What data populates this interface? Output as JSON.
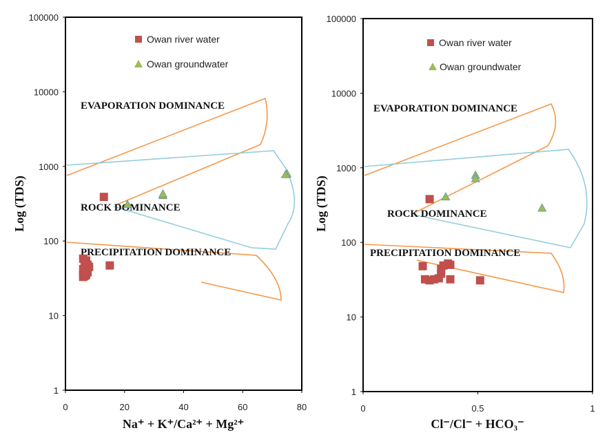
{
  "chart_data": [
    {
      "type": "scatter",
      "title": "",
      "xlabel": "Na⁺ + K⁺/Ca²⁺ + Mg²⁺",
      "ylabel": "Log (TDS)",
      "xlim": [
        0,
        80
      ],
      "ylim": [
        1,
        100000
      ],
      "yscale": "log",
      "x_ticks": [
        "0",
        "20",
        "40",
        "60",
        "80"
      ],
      "y_ticks": [
        "1",
        "10",
        "100",
        "1000",
        "10000",
        "100000"
      ],
      "grid": false,
      "legend_position": "top-right",
      "zones": [
        "EVAPORATION DOMINANCE",
        "ROCK DOMINANCE",
        "PRECIPITATION DOMINANCE"
      ],
      "series": [
        {
          "name": "Owan river water",
          "marker": "square",
          "color": "#c0504d",
          "points": [
            [
              13,
              390
            ],
            [
              6,
              58
            ],
            [
              7,
              55
            ],
            [
              6.5,
              50
            ],
            [
              7.5,
              48
            ],
            [
              8,
              45
            ],
            [
              6,
              42
            ],
            [
              7,
              40
            ],
            [
              7.5,
              38
            ],
            [
              6,
              36
            ],
            [
              7,
              35
            ],
            [
              6.5,
              34
            ],
            [
              6,
              33
            ],
            [
              15,
              47
            ]
          ]
        },
        {
          "name": "Owan groundwater",
          "marker": "triangle",
          "color": "#9bbb59",
          "points": [
            [
              21,
              310
            ],
            [
              33,
              410
            ],
            [
              33,
              430
            ],
            [
              75,
              800
            ],
            [
              74.5,
              780
            ]
          ]
        }
      ],
      "boomerang_colors": {
        "outer": "#f79646",
        "inner": "#93cddd"
      }
    },
    {
      "type": "scatter",
      "title": "",
      "xlabel": "Cl⁻/Cl⁻ + HCO₃⁻",
      "ylabel": "Log (TDS)",
      "xlim": [
        0,
        1
      ],
      "ylim": [
        1,
        100000
      ],
      "yscale": "log",
      "x_ticks": [
        "0",
        "0.5",
        "1"
      ],
      "y_ticks": [
        "1",
        "10",
        "100",
        "1000",
        "10000",
        "100000"
      ],
      "grid": false,
      "legend_position": "top-right",
      "zones": [
        "EVAPORATION DOMINANCE",
        "ROCK DOMINANCE",
        "PRECIPITATION DOMINANCE"
      ],
      "series": [
        {
          "name": "Owan river water",
          "marker": "square",
          "color": "#c0504d",
          "points": [
            [
              0.29,
              380
            ],
            [
              0.26,
              48
            ],
            [
              0.27,
              32
            ],
            [
              0.29,
              31
            ],
            [
              0.31,
              32
            ],
            [
              0.33,
              33
            ],
            [
              0.34,
              38
            ],
            [
              0.34,
              44
            ],
            [
              0.35,
              49
            ],
            [
              0.37,
              52
            ],
            [
              0.38,
              50
            ],
            [
              0.38,
              32
            ],
            [
              0.51,
              31
            ]
          ]
        },
        {
          "name": "Owan groundwater",
          "marker": "triangle",
          "color": "#9bbb59",
          "points": [
            [
              0.36,
              410
            ],
            [
              0.49,
              800
            ],
            [
              0.49,
              720
            ],
            [
              0.78,
              290
            ]
          ]
        }
      ],
      "boomerang_colors": {
        "outer": "#f79646",
        "inner": "#93cddd"
      }
    }
  ]
}
